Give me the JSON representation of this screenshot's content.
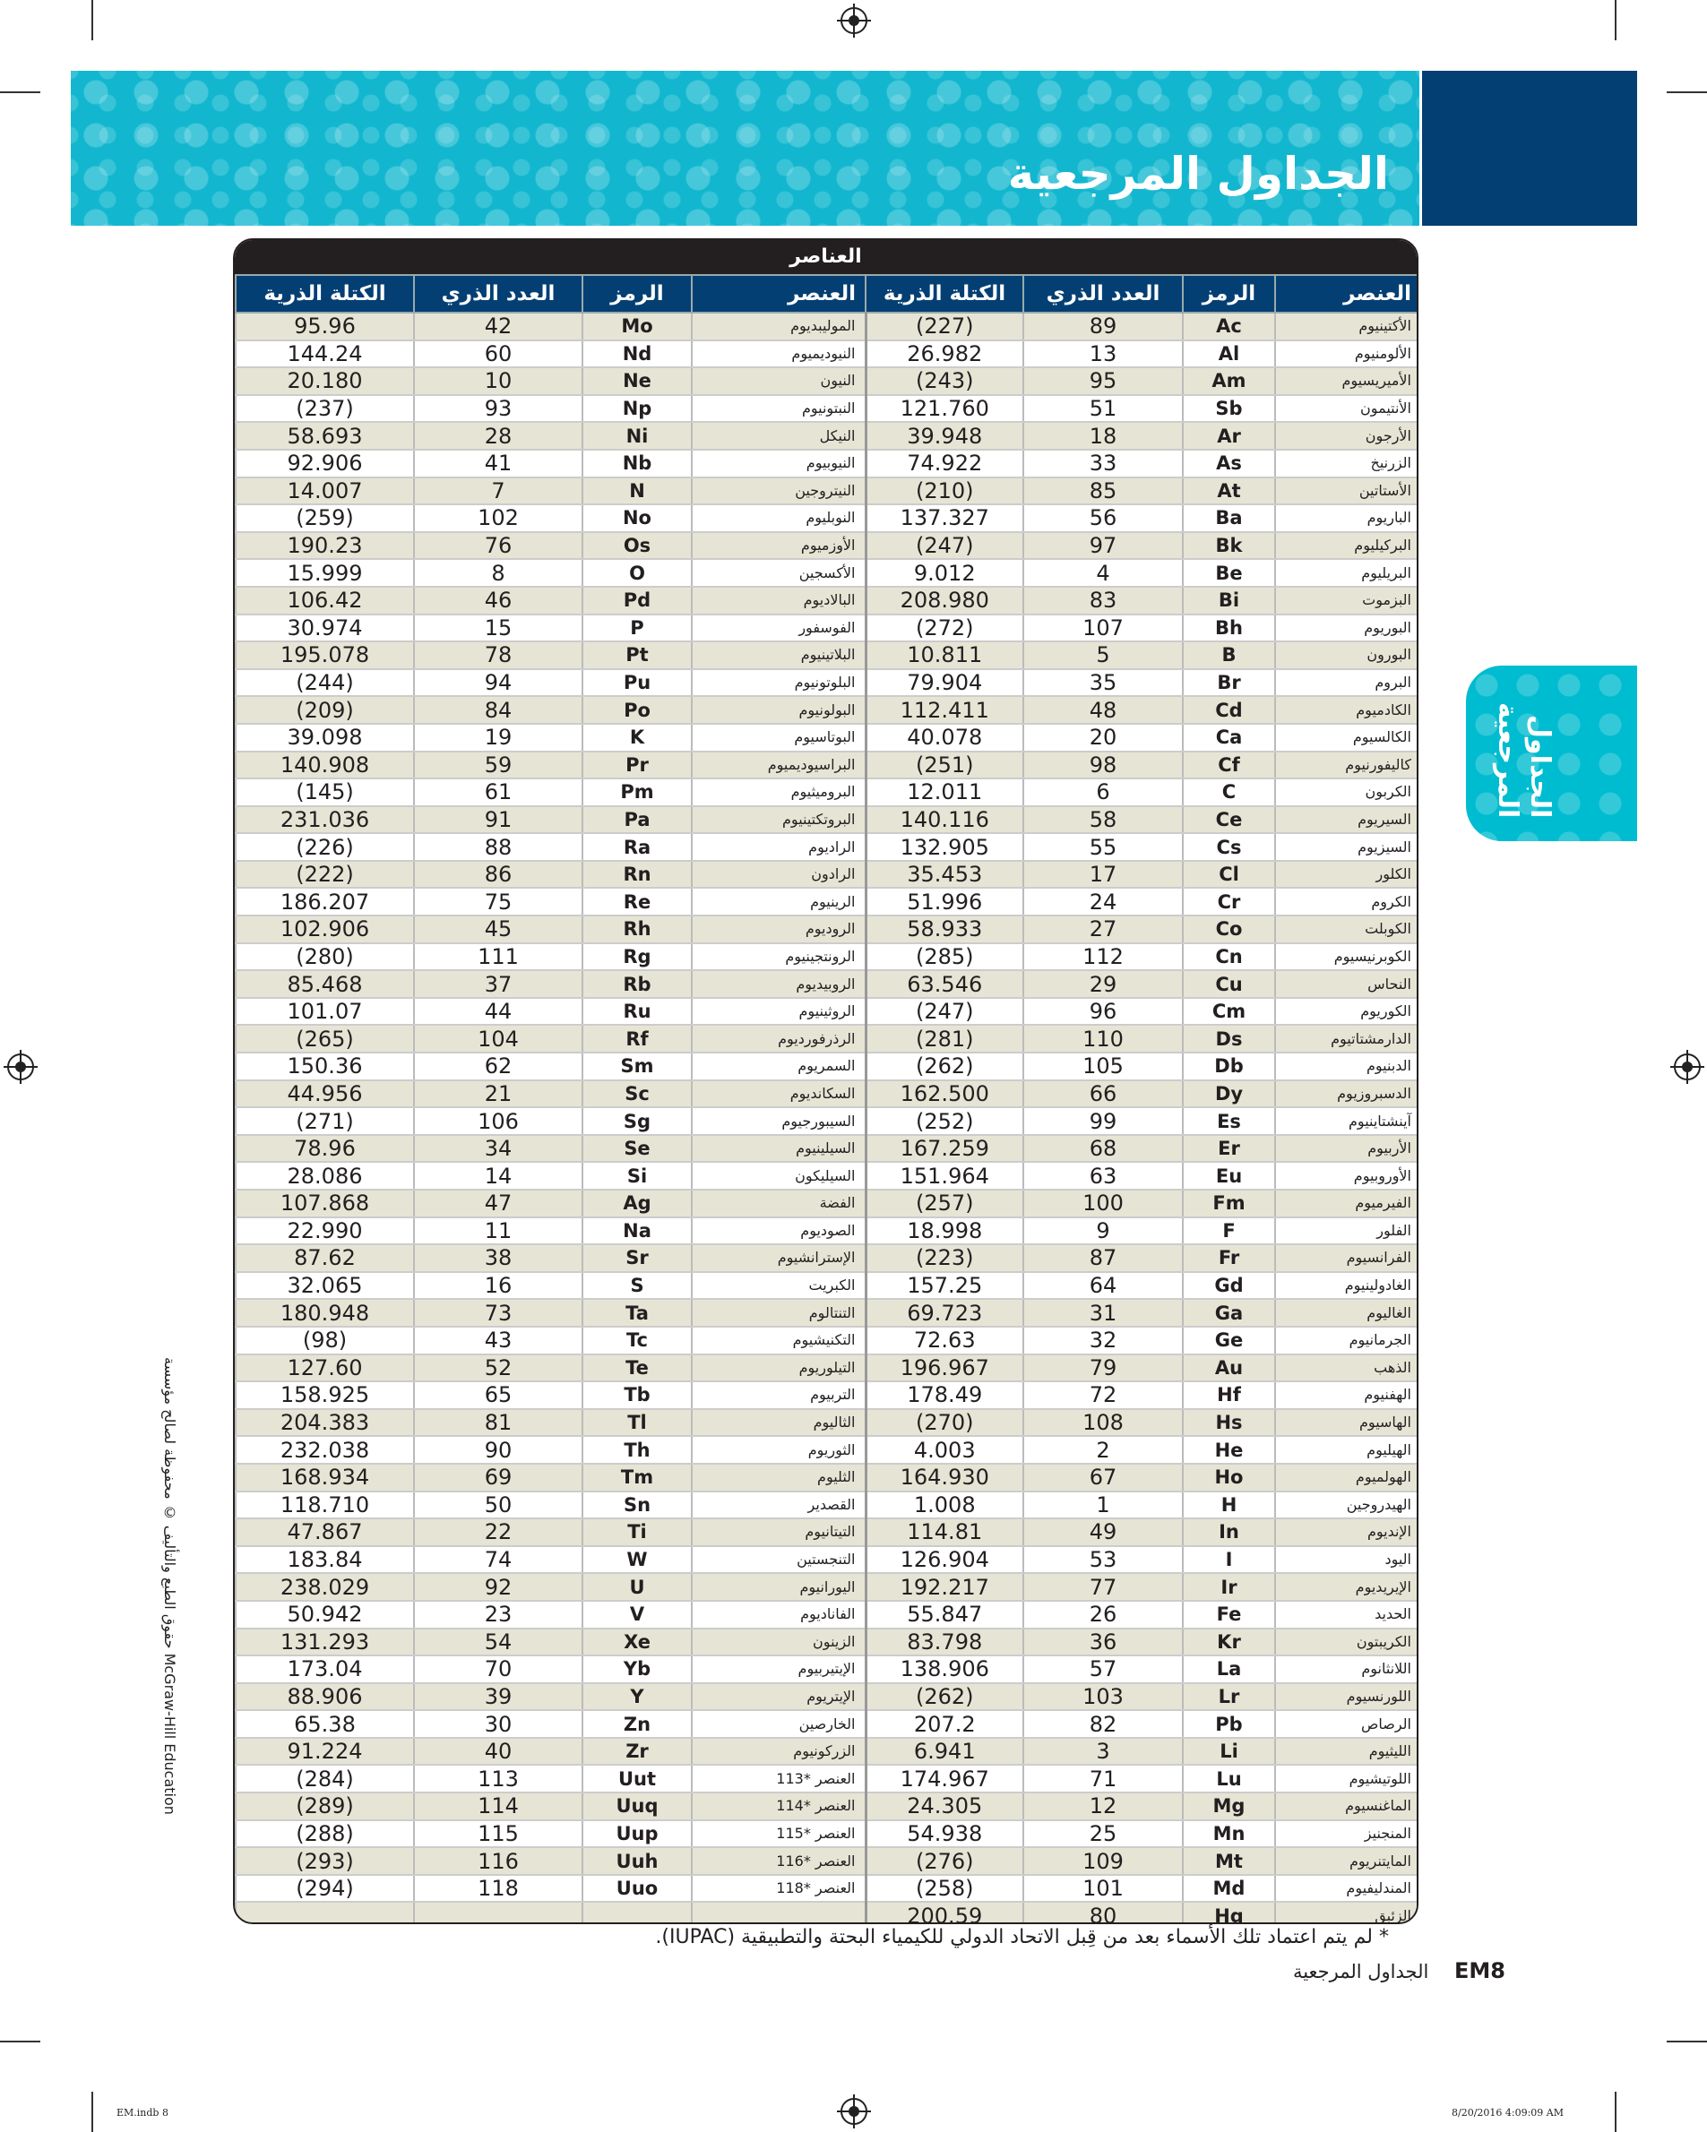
{
  "header": {
    "title": "الجداول المرجعية",
    "side_tab": "الجداول المرجعية",
    "brand_color": "#12b7cf",
    "accent_color": "#043f74"
  },
  "table": {
    "title": "العناصر",
    "columns": {
      "name": "العنصر",
      "symbol": "الرمز",
      "number": "العدد الذري",
      "mass": "الكتلة الذرية"
    },
    "right": [
      [
        "الأكتينيوم",
        "Ac",
        "89",
        "(227)"
      ],
      [
        "الألومنيوم",
        "Al",
        "13",
        "26.982"
      ],
      [
        "الأميريسيوم",
        "Am",
        "95",
        "(243)"
      ],
      [
        "الأنتيمون",
        "Sb",
        "51",
        "121.760"
      ],
      [
        "الأرجون",
        "Ar",
        "18",
        "39.948"
      ],
      [
        "الزرنيخ",
        "As",
        "33",
        "74.922"
      ],
      [
        "الأستاتين",
        "At",
        "85",
        "(210)"
      ],
      [
        "الباريوم",
        "Ba",
        "56",
        "137.327"
      ],
      [
        "البركيليوم",
        "Bk",
        "97",
        "(247)"
      ],
      [
        "البريليوم",
        "Be",
        "4",
        "9.012"
      ],
      [
        "البزموت",
        "Bi",
        "83",
        "208.980"
      ],
      [
        "البوريوم",
        "Bh",
        "107",
        "(272)"
      ],
      [
        "البورون",
        "B",
        "5",
        "10.811"
      ],
      [
        "البروم",
        "Br",
        "35",
        "79.904"
      ],
      [
        "الكادميوم",
        "Cd",
        "48",
        "112.411"
      ],
      [
        "الكالسيوم",
        "Ca",
        "20",
        "40.078"
      ],
      [
        "كاليفورنيوم",
        "Cf",
        "98",
        "(251)"
      ],
      [
        "الكربون",
        "C",
        "6",
        "12.011"
      ],
      [
        "السيريوم",
        "Ce",
        "58",
        "140.116"
      ],
      [
        "السيزيوم",
        "Cs",
        "55",
        "132.905"
      ],
      [
        "الكلور",
        "Cl",
        "17",
        "35.453"
      ],
      [
        "الكروم",
        "Cr",
        "24",
        "51.996"
      ],
      [
        "الكوبلت",
        "Co",
        "27",
        "58.933"
      ],
      [
        "الكوبرنيسيوم",
        "Cn",
        "112",
        "(285)"
      ],
      [
        "النحاس",
        "Cu",
        "29",
        "63.546"
      ],
      [
        "الكوريوم",
        "Cm",
        "96",
        "(247)"
      ],
      [
        "الدارمشتاتيوم",
        "Ds",
        "110",
        "(281)"
      ],
      [
        "الدبنيوم",
        "Db",
        "105",
        "(262)"
      ],
      [
        "الدسبروزيوم",
        "Dy",
        "66",
        "162.500"
      ],
      [
        "آينشتاينيوم",
        "Es",
        "99",
        "(252)"
      ],
      [
        "الأربيوم",
        "Er",
        "68",
        "167.259"
      ],
      [
        "الأوروبيوم",
        "Eu",
        "63",
        "151.964"
      ],
      [
        "الفيرميوم",
        "Fm",
        "100",
        "(257)"
      ],
      [
        "الفلور",
        "F",
        "9",
        "18.998"
      ],
      [
        "الفرانسيوم",
        "Fr",
        "87",
        "(223)"
      ],
      [
        "الغادولينيوم",
        "Gd",
        "64",
        "157.25"
      ],
      [
        "الغاليوم",
        "Ga",
        "31",
        "69.723"
      ],
      [
        "الجرمانيوم",
        "Ge",
        "32",
        "72.63"
      ],
      [
        "الذهب",
        "Au",
        "79",
        "196.967"
      ],
      [
        "الهفنيوم",
        "Hf",
        "72",
        "178.49"
      ],
      [
        "الهاسيوم",
        "Hs",
        "108",
        "(270)"
      ],
      [
        "الهيليوم",
        "He",
        "2",
        "4.003"
      ],
      [
        "الهولميوم",
        "Ho",
        "67",
        "164.930"
      ],
      [
        "الهيدروجين",
        "H",
        "1",
        "1.008"
      ],
      [
        "الإنديوم",
        "In",
        "49",
        "114.81"
      ],
      [
        "اليود",
        "I",
        "53",
        "126.904"
      ],
      [
        "الإيريديوم",
        "Ir",
        "77",
        "192.217"
      ],
      [
        "الحديد",
        "Fe",
        "26",
        "55.847"
      ],
      [
        "الكريبتون",
        "Kr",
        "36",
        "83.798"
      ],
      [
        "اللانثانوم",
        "La",
        "57",
        "138.906"
      ],
      [
        "اللورنسيوم",
        "Lr",
        "103",
        "(262)"
      ],
      [
        "الرصاص",
        "Pb",
        "82",
        "207.2"
      ],
      [
        "الليثيوم",
        "Li",
        "3",
        "6.941"
      ],
      [
        "اللوتيشيوم",
        "Lu",
        "71",
        "174.967"
      ],
      [
        "الماغنسيوم",
        "Mg",
        "12",
        "24.305"
      ],
      [
        "المنجنيز",
        "Mn",
        "25",
        "54.938"
      ],
      [
        "المايتنريوم",
        "Mt",
        "109",
        "(276)"
      ],
      [
        "المندليفيوم",
        "Md",
        "101",
        "(258)"
      ],
      [
        "الزئبق",
        "Hg",
        "80",
        "200.59"
      ]
    ],
    "left": [
      [
        "الموليبديوم",
        "Mo",
        "42",
        "95.96"
      ],
      [
        "النيوديميوم",
        "Nd",
        "60",
        "144.24"
      ],
      [
        "النيون",
        "Ne",
        "10",
        "20.180"
      ],
      [
        "النبتونيوم",
        "Np",
        "93",
        "(237)"
      ],
      [
        "النيكل",
        "Ni",
        "28",
        "58.693"
      ],
      [
        "النيوبيوم",
        "Nb",
        "41",
        "92.906"
      ],
      [
        "النيتروجين",
        "N",
        "7",
        "14.007"
      ],
      [
        "النوبليوم",
        "No",
        "102",
        "(259)"
      ],
      [
        "الأوزميوم",
        "Os",
        "76",
        "190.23"
      ],
      [
        "الأكسجين",
        "O",
        "8",
        "15.999"
      ],
      [
        "البالاديوم",
        "Pd",
        "46",
        "106.42"
      ],
      [
        "الفوسفور",
        "P",
        "15",
        "30.974"
      ],
      [
        "البلاتينيوم",
        "Pt",
        "78",
        "195.078"
      ],
      [
        "البلوتونيوم",
        "Pu",
        "94",
        "(244)"
      ],
      [
        "البولونيوم",
        "Po",
        "84",
        "(209)"
      ],
      [
        "البوتاسيوم",
        "K",
        "19",
        "39.098"
      ],
      [
        "البراسيوديميوم",
        "Pr",
        "59",
        "140.908"
      ],
      [
        "البروميثيوم",
        "Pm",
        "61",
        "(145)"
      ],
      [
        "البروتكتينيوم",
        "Pa",
        "91",
        "231.036"
      ],
      [
        "الراديوم",
        "Ra",
        "88",
        "(226)"
      ],
      [
        "الرادون",
        "Rn",
        "86",
        "(222)"
      ],
      [
        "الرينيوم",
        "Re",
        "75",
        "186.207"
      ],
      [
        "الروديوم",
        "Rh",
        "45",
        "102.906"
      ],
      [
        "الرونتجينيوم",
        "Rg",
        "111",
        "(280)"
      ],
      [
        "الروبيديوم",
        "Rb",
        "37",
        "85.468"
      ],
      [
        "الروثينيوم",
        "Ru",
        "44",
        "101.07"
      ],
      [
        "الرذرفورديوم",
        "Rf",
        "104",
        "(265)"
      ],
      [
        "السمريوم",
        "Sm",
        "62",
        "150.36"
      ],
      [
        "السكانديوم",
        "Sc",
        "21",
        "44.956"
      ],
      [
        "السيبورجيوم",
        "Sg",
        "106",
        "(271)"
      ],
      [
        "السيلينيوم",
        "Se",
        "34",
        "78.96"
      ],
      [
        "السيليكون",
        "Si",
        "14",
        "28.086"
      ],
      [
        "الفضة",
        "Ag",
        "47",
        "107.868"
      ],
      [
        "الصوديوم",
        "Na",
        "11",
        "22.990"
      ],
      [
        "الإسترانشيوم",
        "Sr",
        "38",
        "87.62"
      ],
      [
        "الكبريت",
        "S",
        "16",
        "32.065"
      ],
      [
        "التنتالوم",
        "Ta",
        "73",
        "180.948"
      ],
      [
        "التكنيشيوم",
        "Tc",
        "43",
        "(98)"
      ],
      [
        "التيلوريوم",
        "Te",
        "52",
        "127.60"
      ],
      [
        "التربيوم",
        "Tb",
        "65",
        "158.925"
      ],
      [
        "الثاليوم",
        "Tl",
        "81",
        "204.383"
      ],
      [
        "الثوريوم",
        "Th",
        "90",
        "232.038"
      ],
      [
        "الثليوم",
        "Tm",
        "69",
        "168.934"
      ],
      [
        "القصدير",
        "Sn",
        "50",
        "118.710"
      ],
      [
        "التيتانيوم",
        "Ti",
        "22",
        "47.867"
      ],
      [
        "التنجستين",
        "W",
        "74",
        "183.84"
      ],
      [
        "اليورانيوم",
        "U",
        "92",
        "238.029"
      ],
      [
        "الفاناديوم",
        "V",
        "23",
        "50.942"
      ],
      [
        "الزينون",
        "Xe",
        "54",
        "131.293"
      ],
      [
        "الإيتيربيوم",
        "Yb",
        "70",
        "173.04"
      ],
      [
        "الإيتريوم",
        "Y",
        "39",
        "88.906"
      ],
      [
        "الخارصين",
        "Zn",
        "30",
        "65.38"
      ],
      [
        "الزركونيوم",
        "Zr",
        "40",
        "91.224"
      ],
      [
        "العنصر *113",
        "Uut",
        "113",
        "(284)"
      ],
      [
        "العنصر *114",
        "Uuq",
        "114",
        "(289)"
      ],
      [
        "العنصر *115",
        "Uup",
        "115",
        "(288)"
      ],
      [
        "العنصر *116",
        "Uuh",
        "116",
        "(293)"
      ],
      [
        "العنصر *118",
        "Uuo",
        "118",
        "(294)"
      ]
    ]
  },
  "footnote": "* لم يتم اعتماد تلك الأسماء بعد من قِبل الاتحاد الدولي للكيمياء البحتة والتطبيقية (IUPAC).",
  "footer": {
    "page": "EM8",
    "section": "الجداول المرجعية"
  },
  "copyright": "حقوق الطبع والتأليف © محفوظة لصالح مؤسسة McGraw-Hill Education",
  "print_info": {
    "file": "EM.indb   8",
    "timestamp": "8/20/2016   4:09:09 AM"
  }
}
